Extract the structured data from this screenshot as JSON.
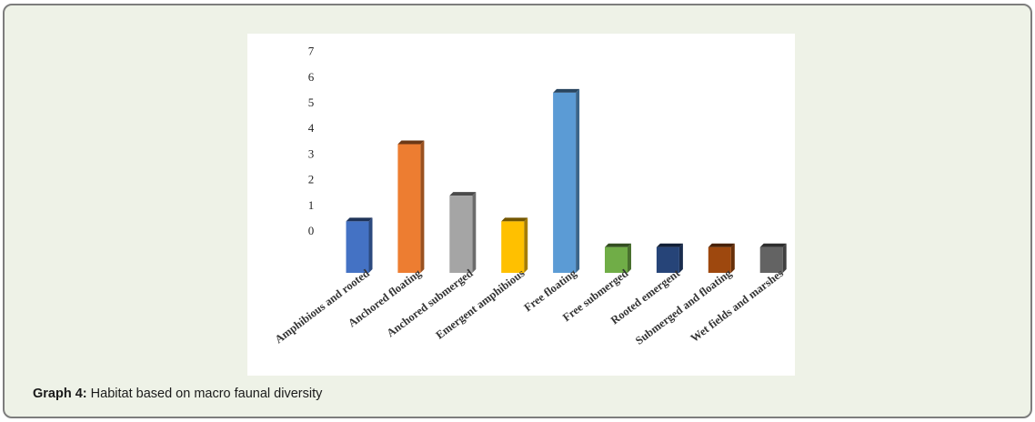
{
  "caption": {
    "label": "Graph 4:",
    "text": "Habitat based on macro faunal diversity"
  },
  "chart_data": {
    "type": "bar",
    "style": "3d-column",
    "categories": [
      "Amphibious and rooted",
      "Anchored floating",
      "Anchored submerged",
      "Emergent amphibious",
      "Free floating",
      "Free submerged",
      "Rooted emergent",
      "Submerged and floating",
      "Wet fields and marshes"
    ],
    "values": [
      2,
      5,
      3,
      2,
      7,
      1,
      1,
      1,
      1
    ],
    "colors": [
      "#4472c4",
      "#ed7d31",
      "#a5a5a5",
      "#ffc000",
      "#5b9bd5",
      "#70ad47",
      "#264478",
      "#9e480e",
      "#636363"
    ],
    "y_tick_labels": [
      "0",
      "1",
      "2",
      "3",
      "4",
      "5",
      "6",
      "7"
    ],
    "ylim": [
      0,
      7
    ],
    "grid": false,
    "legend": "none",
    "title": "",
    "xlabel": "",
    "ylabel": ""
  }
}
